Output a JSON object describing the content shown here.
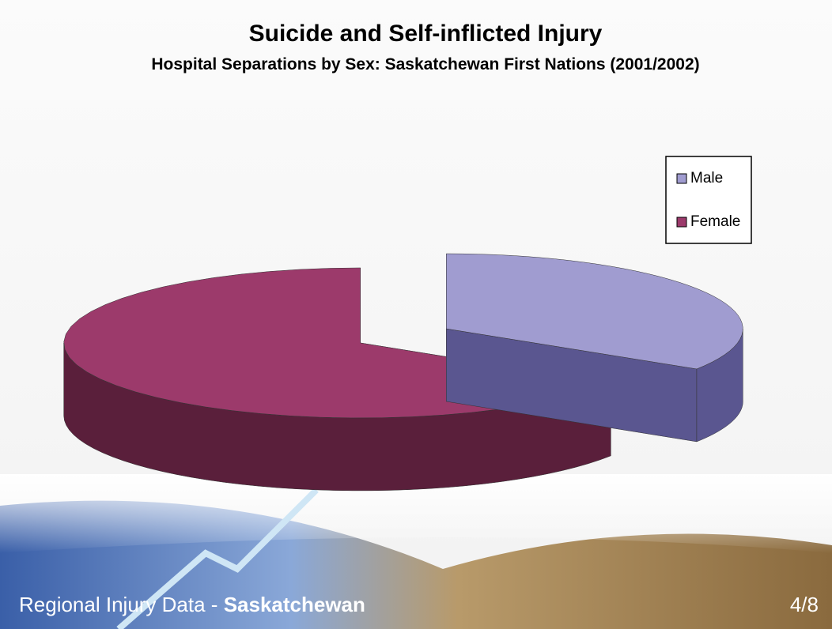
{
  "chart_data": {
    "type": "pie",
    "title": "Suicide and Self-inflicted Injury",
    "subtitle": "Hospital Separations by Sex: Saskatchewan First Nations (2001/2002)",
    "categories": [
      "Male",
      "Female"
    ],
    "values": [
      34,
      66
    ],
    "colors": [
      "#a09cd0",
      "#9c3a6b"
    ],
    "side_colors": [
      "#5a5690",
      "#5a1f3b"
    ],
    "legend": "upper right"
  },
  "footer": {
    "label": "Regional Injury Data - ",
    "region": "Saskatchewan",
    "page": "4/8"
  }
}
